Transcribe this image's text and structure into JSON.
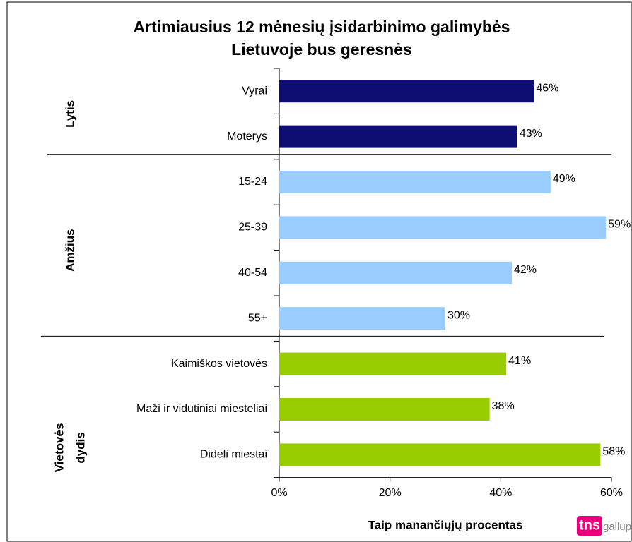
{
  "chart_data": {
    "type": "hbar",
    "title": [
      "Artimiausius 12 mėnesių įsidarbinimo galimybės",
      "Lietuvoje bus geresnės"
    ],
    "categories": [
      "Vyrai",
      "Moterys",
      "15-24",
      "25-39",
      "40-54",
      "55+",
      "Kaimiškos vietovės",
      "Maži ir vidutiniai miesteliai",
      "Dideli miestai"
    ],
    "values": [
      46,
      43,
      49,
      59,
      42,
      30,
      41,
      38,
      58
    ],
    "value_labels": [
      "46%",
      "43%",
      "49%",
      "59%",
      "42%",
      "30%",
      "41%",
      "38%",
      "58%"
    ],
    "colors": [
      "#0d0d73",
      "#0d0d73",
      "#99ccff",
      "#99ccff",
      "#99ccff",
      "#99ccff",
      "#99cc00",
      "#99cc00",
      "#99cc00"
    ],
    "groups": [
      [
        "Lytis"
      ],
      [
        "Amžius"
      ],
      [
        "Vietovės",
        "dydis"
      ]
    ],
    "xlim": [
      0,
      60
    ],
    "xticks": [
      {
        "value": 0,
        "label": "0%"
      },
      {
        "value": 20,
        "label": "20%"
      },
      {
        "value": 40,
        "label": "40%"
      },
      {
        "value": 60,
        "label": "60%"
      }
    ],
    "xlabel": "Taip manančiųjų procentas",
    "logo": [
      "tns",
      "gallup"
    ]
  }
}
